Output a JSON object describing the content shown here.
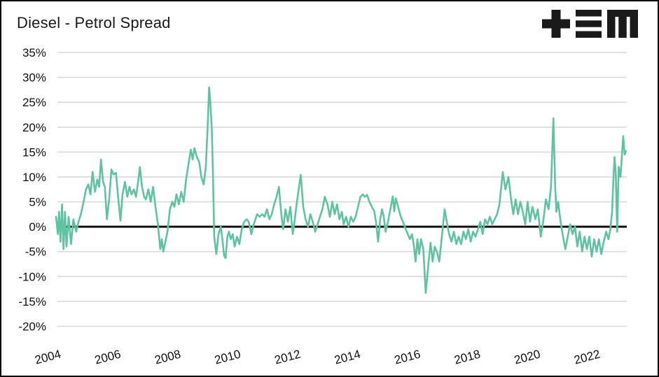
{
  "window": {
    "background": "#ffffff",
    "frame_border_color": "#000000"
  },
  "header": {
    "title": "Diesel - Petrol Spread",
    "logo": {
      "name": "tem-logo",
      "glyphs": [
        "plus",
        "triple-bar",
        "block-m"
      ],
      "color": "#1a1a1a"
    }
  },
  "chart_data": {
    "type": "line",
    "title": "Diesel - Petrol Spread",
    "xlabel": "",
    "ylabel": "",
    "xlim": [
      2004,
      2023.05
    ],
    "ylim": [
      -20,
      35
    ],
    "grid": "horizontal",
    "legend": "none",
    "zero_line": true,
    "x_ticks": [
      2004,
      2006,
      2008,
      2010,
      2012,
      2014,
      2016,
      2018,
      2020,
      2022
    ],
    "x_tick_labels": [
      "2004",
      "2006",
      "2008",
      "2010",
      "2012",
      "2014",
      "2016",
      "2018",
      "2020",
      "2022"
    ],
    "x_tick_rotation_deg": -15,
    "y_ticks": [
      35,
      30,
      25,
      20,
      15,
      10,
      5,
      0,
      -5,
      -10,
      -15,
      -20
    ],
    "y_tick_labels": [
      "35%",
      "30%",
      "25%",
      "20%",
      "15%",
      "10%",
      "5%",
      "0%",
      "-5%",
      "-10%",
      "-15%",
      "-20%"
    ],
    "colors": {
      "line": "#5fc2a1",
      "grid": "#d9d9d9",
      "zero_line": "#111111",
      "tick_text": "#111111",
      "title_text": "#1a1a1a"
    },
    "series": [
      {
        "name": "Diesel - Petrol Spread (%)",
        "color": "#5fc2a1",
        "points": [
          [
            2004.0,
            2
          ],
          [
            2004.06,
            -1.5
          ],
          [
            2004.1,
            3
          ],
          [
            2004.15,
            -3
          ],
          [
            2004.2,
            4.5
          ],
          [
            2004.25,
            -4.5
          ],
          [
            2004.3,
            3
          ],
          [
            2004.35,
            -4
          ],
          [
            2004.42,
            2
          ],
          [
            2004.5,
            -3.5
          ],
          [
            2004.58,
            1.5
          ],
          [
            2004.67,
            -1
          ],
          [
            2004.75,
            1
          ],
          [
            2004.83,
            2.5
          ],
          [
            2004.92,
            5
          ],
          [
            2005.0,
            7.5
          ],
          [
            2005.08,
            8.5
          ],
          [
            2005.15,
            6.5
          ],
          [
            2005.22,
            11
          ],
          [
            2005.3,
            7
          ],
          [
            2005.38,
            9.5
          ],
          [
            2005.44,
            8
          ],
          [
            2005.5,
            13.5
          ],
          [
            2005.57,
            9
          ],
          [
            2005.63,
            8
          ],
          [
            2005.7,
            1.5
          ],
          [
            2005.78,
            6
          ],
          [
            2005.85,
            11.5
          ],
          [
            2005.92,
            10.5
          ],
          [
            2006.0,
            10.8
          ],
          [
            2006.08,
            5.5
          ],
          [
            2006.15,
            1.2
          ],
          [
            2006.22,
            6.5
          ],
          [
            2006.3,
            9
          ],
          [
            2006.38,
            6
          ],
          [
            2006.45,
            8
          ],
          [
            2006.52,
            6.5
          ],
          [
            2006.6,
            7.5
          ],
          [
            2006.67,
            6
          ],
          [
            2006.74,
            9
          ],
          [
            2006.8,
            12
          ],
          [
            2006.87,
            8
          ],
          [
            2006.94,
            6
          ],
          [
            2007.0,
            5.5
          ],
          [
            2007.08,
            7.5
          ],
          [
            2007.16,
            5
          ],
          [
            2007.24,
            8
          ],
          [
            2007.32,
            4
          ],
          [
            2007.4,
            0.5
          ],
          [
            2007.48,
            -4.5
          ],
          [
            2007.53,
            -2.5
          ],
          [
            2007.58,
            -5
          ],
          [
            2007.65,
            -3
          ],
          [
            2007.72,
            -1
          ],
          [
            2007.8,
            3.5
          ],
          [
            2007.88,
            5
          ],
          [
            2007.95,
            4
          ],
          [
            2008.02,
            6.5
          ],
          [
            2008.1,
            4.5
          ],
          [
            2008.18,
            7
          ],
          [
            2008.26,
            5
          ],
          [
            2008.34,
            9.5
          ],
          [
            2008.42,
            12.5
          ],
          [
            2008.5,
            15.5
          ],
          [
            2008.56,
            13.5
          ],
          [
            2008.62,
            15.8
          ],
          [
            2008.7,
            14
          ],
          [
            2008.78,
            13
          ],
          [
            2008.85,
            10
          ],
          [
            2008.93,
            8.5
          ],
          [
            2009.0,
            12
          ],
          [
            2009.06,
            20
          ],
          [
            2009.11,
            28
          ],
          [
            2009.15,
            25
          ],
          [
            2009.2,
            19.5
          ],
          [
            2009.24,
            10
          ],
          [
            2009.28,
            -2
          ],
          [
            2009.35,
            -5.5
          ],
          [
            2009.42,
            -1.5
          ],
          [
            2009.5,
            0
          ],
          [
            2009.56,
            -3
          ],
          [
            2009.61,
            -5.8
          ],
          [
            2009.66,
            -6.3
          ],
          [
            2009.72,
            -2
          ],
          [
            2009.77,
            -1
          ],
          [
            2009.83,
            -2.5
          ],
          [
            2009.9,
            -1.5
          ],
          [
            2009.96,
            -4
          ],
          [
            2010.04,
            -2
          ],
          [
            2010.12,
            -3.5
          ],
          [
            2010.2,
            -0.5
          ],
          [
            2010.28,
            1
          ],
          [
            2010.36,
            1.5
          ],
          [
            2010.43,
            1
          ],
          [
            2010.52,
            -1.5
          ],
          [
            2010.6,
            0.5
          ],
          [
            2010.71,
            2.5
          ],
          [
            2010.8,
            2
          ],
          [
            2010.88,
            2.5
          ],
          [
            2010.96,
            2
          ],
          [
            2011.04,
            3.5
          ],
          [
            2011.12,
            1.5
          ],
          [
            2011.2,
            2.5
          ],
          [
            2011.28,
            4.5
          ],
          [
            2011.36,
            6
          ],
          [
            2011.44,
            8
          ],
          [
            2011.52,
            2.5
          ],
          [
            2011.58,
            -0.5
          ],
          [
            2011.66,
            3.5
          ],
          [
            2011.74,
            1
          ],
          [
            2011.82,
            4
          ],
          [
            2011.9,
            -1.5
          ],
          [
            2011.96,
            1
          ],
          [
            2012.04,
            5
          ],
          [
            2012.17,
            10.4
          ],
          [
            2012.25,
            4
          ],
          [
            2012.33,
            1.5
          ],
          [
            2012.41,
            0
          ],
          [
            2012.49,
            2.5
          ],
          [
            2012.57,
            1
          ],
          [
            2012.65,
            -1
          ],
          [
            2012.73,
            0.5
          ],
          [
            2012.81,
            2
          ],
          [
            2012.89,
            3.5
          ],
          [
            2012.97,
            6
          ],
          [
            2013.06,
            4.5
          ],
          [
            2013.14,
            2
          ],
          [
            2013.22,
            5
          ],
          [
            2013.3,
            2.5
          ],
          [
            2013.38,
            4.5
          ],
          [
            2013.46,
            1.5
          ],
          [
            2013.54,
            3
          ],
          [
            2013.6,
            0.5
          ],
          [
            2013.68,
            2
          ],
          [
            2013.76,
            0
          ],
          [
            2013.84,
            2
          ],
          [
            2013.92,
            1
          ],
          [
            2014.0,
            2
          ],
          [
            2014.08,
            4
          ],
          [
            2014.16,
            6
          ],
          [
            2014.24,
            6.5
          ],
          [
            2014.3,
            6
          ],
          [
            2014.38,
            6.4
          ],
          [
            2014.46,
            5
          ],
          [
            2014.54,
            4
          ],
          [
            2014.62,
            3.2
          ],
          [
            2014.68,
            1
          ],
          [
            2014.75,
            -3
          ],
          [
            2014.82,
            1.5
          ],
          [
            2014.88,
            3.5
          ],
          [
            2014.94,
            2
          ],
          [
            2015.0,
            -1
          ],
          [
            2015.08,
            1
          ],
          [
            2015.16,
            3.5
          ],
          [
            2015.24,
            6.1
          ],
          [
            2015.29,
            3.1
          ],
          [
            2015.34,
            5.7
          ],
          [
            2015.42,
            4
          ],
          [
            2015.5,
            2.1
          ],
          [
            2015.58,
            1
          ],
          [
            2015.67,
            -0.5
          ],
          [
            2015.74,
            -1.5
          ],
          [
            2015.81,
            -2.5
          ],
          [
            2015.88,
            -1.5
          ],
          [
            2015.95,
            -4
          ],
          [
            2016.0,
            -7
          ],
          [
            2016.06,
            -2.5
          ],
          [
            2016.12,
            -5.5
          ],
          [
            2016.18,
            -2.5
          ],
          [
            2016.26,
            -4.5
          ],
          [
            2016.34,
            -13.3
          ],
          [
            2016.42,
            -8
          ],
          [
            2016.5,
            -3.2
          ],
          [
            2016.57,
            -7
          ],
          [
            2016.64,
            -4
          ],
          [
            2016.71,
            -5
          ],
          [
            2016.79,
            -7
          ],
          [
            2016.86,
            -3
          ],
          [
            2016.92,
            0.5
          ],
          [
            2016.97,
            3.5
          ],
          [
            2017.04,
            1
          ],
          [
            2017.12,
            -1.5
          ],
          [
            2017.2,
            -3
          ],
          [
            2017.28,
            -1
          ],
          [
            2017.36,
            -3.5
          ],
          [
            2017.44,
            -2
          ],
          [
            2017.52,
            -3.5
          ],
          [
            2017.6,
            -1
          ],
          [
            2017.68,
            -2.5
          ],
          [
            2017.76,
            -0.5
          ],
          [
            2017.84,
            -3
          ],
          [
            2017.92,
            -1
          ],
          [
            2018.0,
            -2
          ],
          [
            2018.08,
            -0.5
          ],
          [
            2018.16,
            1
          ],
          [
            2018.24,
            -1.5
          ],
          [
            2018.32,
            1.5
          ],
          [
            2018.4,
            0.5
          ],
          [
            2018.48,
            2
          ],
          [
            2018.56,
            0.5
          ],
          [
            2018.64,
            1.5
          ],
          [
            2018.72,
            2.5
          ],
          [
            2018.8,
            4.5
          ],
          [
            2018.91,
            11
          ],
          [
            2019.0,
            7.5
          ],
          [
            2019.1,
            10
          ],
          [
            2019.18,
            6
          ],
          [
            2019.26,
            2.5
          ],
          [
            2019.34,
            5.5
          ],
          [
            2019.42,
            2.5
          ],
          [
            2019.5,
            5
          ],
          [
            2019.58,
            3
          ],
          [
            2019.66,
            0.5
          ],
          [
            2019.74,
            5
          ],
          [
            2019.82,
            1
          ],
          [
            2019.9,
            4
          ],
          [
            2020.0,
            1.5
          ],
          [
            2020.08,
            3.5
          ],
          [
            2020.18,
            -2
          ],
          [
            2020.26,
            1
          ],
          [
            2020.35,
            5.5
          ],
          [
            2020.44,
            3.5
          ],
          [
            2020.52,
            8
          ],
          [
            2020.6,
            21.8
          ],
          [
            2020.66,
            8
          ],
          [
            2020.7,
            3
          ],
          [
            2020.76,
            5
          ],
          [
            2020.84,
            1
          ],
          [
            2020.92,
            -2
          ],
          [
            2021.0,
            -4.5
          ],
          [
            2021.08,
            -2
          ],
          [
            2021.16,
            0.5
          ],
          [
            2021.24,
            -1.5
          ],
          [
            2021.32,
            0
          ],
          [
            2021.4,
            -4
          ],
          [
            2021.48,
            -1
          ],
          [
            2021.56,
            -5
          ],
          [
            2021.64,
            -2
          ],
          [
            2021.72,
            -4.5
          ],
          [
            2021.8,
            -2
          ],
          [
            2021.88,
            -6
          ],
          [
            2021.96,
            -2.5
          ],
          [
            2022.04,
            -5
          ],
          [
            2022.12,
            -2.5
          ],
          [
            2022.2,
            -5.5
          ],
          [
            2022.28,
            -3
          ],
          [
            2022.36,
            -1
          ],
          [
            2022.44,
            -2.5
          ],
          [
            2022.5,
            -0.5
          ],
          [
            2022.56,
            3
          ],
          [
            2022.6,
            9
          ],
          [
            2022.64,
            14
          ],
          [
            2022.68,
            11
          ],
          [
            2022.73,
            -1
          ],
          [
            2022.78,
            12
          ],
          [
            2022.84,
            10
          ],
          [
            2022.93,
            18.2
          ],
          [
            2022.98,
            14.5
          ],
          [
            2023.02,
            15.2
          ]
        ]
      }
    ]
  }
}
